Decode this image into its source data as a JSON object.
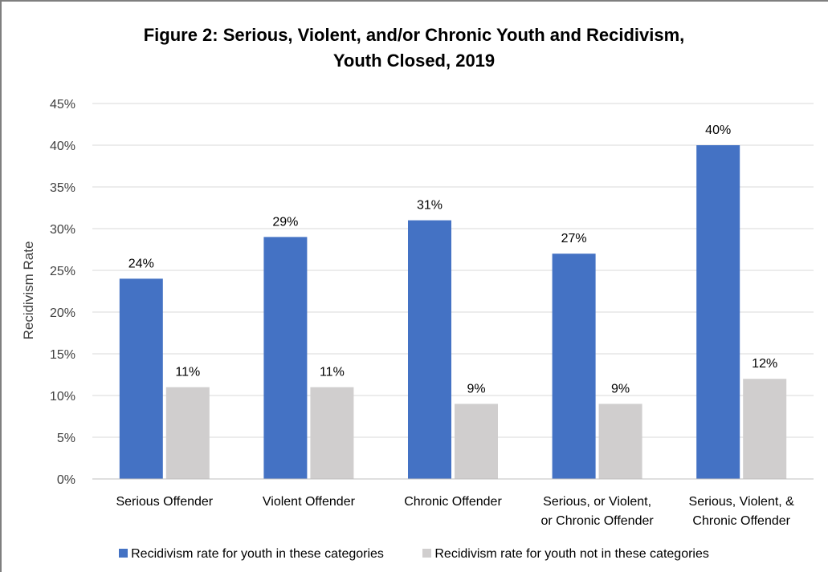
{
  "chart_data": {
    "type": "bar",
    "title_line1": "Figure 2: Serious, Violent, and/or Chronic Youth and Recidivism,",
    "title_line2": "Youth Closed, 2019",
    "ylabel": "Recidivism Rate",
    "xlabel": "",
    "ylim": [
      0,
      45
    ],
    "yticks": [
      "0%",
      "5%",
      "10%",
      "15%",
      "20%",
      "25%",
      "30%",
      "35%",
      "40%",
      "45%"
    ],
    "grid": true,
    "legend_position": "bottom",
    "categories": [
      [
        "Serious Offender"
      ],
      [
        "Violent Offender"
      ],
      [
        "Chronic Offender"
      ],
      [
        "Serious, or Violent,",
        "or Chronic Offender"
      ],
      [
        "Serious, Violent, &",
        "Chronic Offender"
      ]
    ],
    "series": [
      {
        "name": "Recidivism rate for youth in these categories",
        "color": "#4472c4",
        "values": [
          24,
          29,
          31,
          27,
          40
        ],
        "labels": [
          "24%",
          "29%",
          "31%",
          "27%",
          "40%"
        ]
      },
      {
        "name": "Recidivism rate for youth not in these categories",
        "color": "#d0cece",
        "values": [
          11,
          11,
          9,
          9,
          12
        ],
        "labels": [
          "11%",
          "11%",
          "9%",
          "9%",
          "12%"
        ]
      }
    ]
  }
}
